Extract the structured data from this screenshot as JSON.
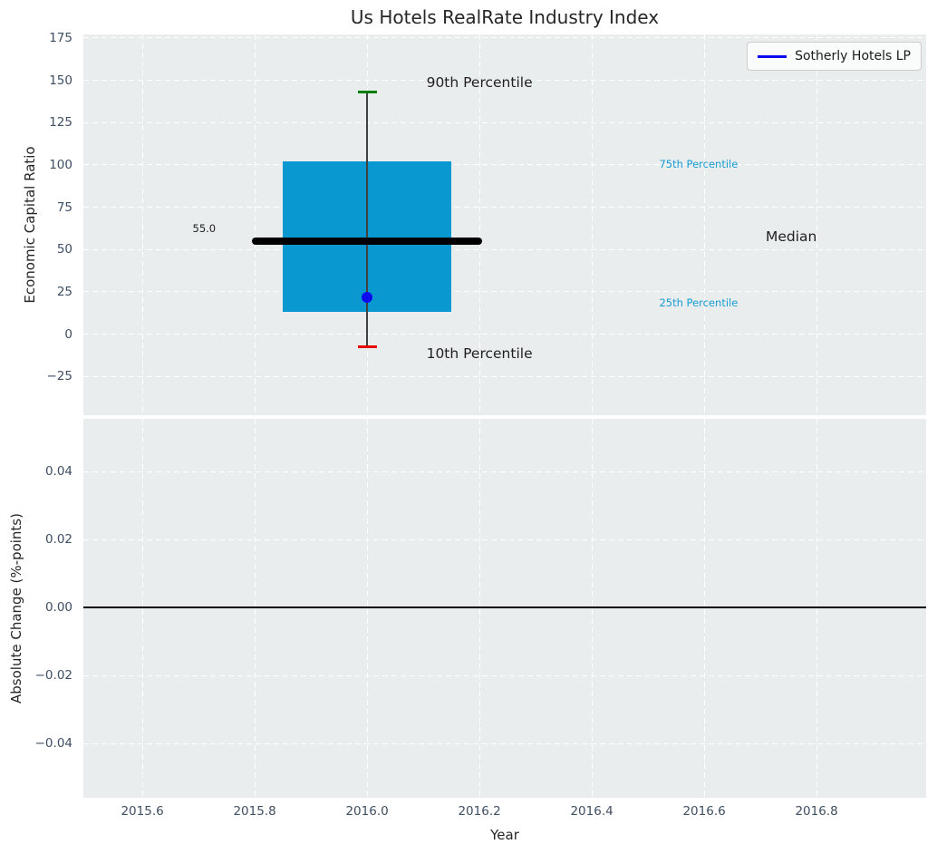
{
  "title": "Us Hotels RealRate Industry Index",
  "legend": {
    "label": "Sotherly Hotels LP"
  },
  "colors": {
    "plot_bg": "#e9edee",
    "grid": "#ffffff",
    "box_fill": "#0999d0",
    "percentile_label_color": "#189cd2",
    "median_line": "#000000",
    "whisker": "#404040",
    "p90_cap": "#008000",
    "p10_cap": "#e60000",
    "company_dot": "#0b0bee",
    "legend_line": "#0b0bee",
    "zero_line": "#000000",
    "tick_label": "#3e4e63",
    "text": "#262626"
  },
  "chart_data": [
    {
      "type": "box",
      "title": "Us Hotels RealRate Industry Index",
      "ylabel": "Economic Capital Ratio",
      "xlim": [
        2015.495,
        2016.995
      ],
      "ylim": [
        -47.9,
        177.1
      ],
      "xticks": [
        2015.6,
        2015.8,
        2016.0,
        2016.2,
        2016.4,
        2016.6,
        2016.8
      ],
      "yticks": [
        175,
        150,
        125,
        100,
        75,
        50,
        25,
        0,
        -25
      ],
      "ytick_labels": [
        "175",
        "150",
        "125",
        "100",
        "75",
        "50",
        "25",
        "0",
        "−25"
      ],
      "grid": true,
      "legend_position": "upper right",
      "box": {
        "x": 2016.0,
        "p90": 143,
        "p75": 102,
        "median": 55.0,
        "p25": 13,
        "p10": -7.5,
        "median_value_label": "55.0",
        "box_halfwidth": 0.15,
        "median_halfwidth": 0.205,
        "cap_halfwidth": 0.017
      },
      "company_point": {
        "name": "Sotherly Hotels LP",
        "x": 2016.0,
        "value": 22
      },
      "annotations": [
        {
          "text": "90th Percentile",
          "x": 2016.2,
          "y": 147.5,
          "size": 15.5,
          "color": "#1f1f1f"
        },
        {
          "text": "75th Percentile",
          "x": 2016.59,
          "y": 100,
          "size": 11.5,
          "color": "#189cd2"
        },
        {
          "text": "Median",
          "x": 2016.755,
          "y": 56.5,
          "size": 15.5,
          "color": "#1f1f1f"
        },
        {
          "text": "25th Percentile",
          "x": 2016.59,
          "y": 18,
          "size": 11.5,
          "color": "#189cd2"
        },
        {
          "text": "10th Percentile",
          "x": 2016.2,
          "y": -12.5,
          "size": 15.5,
          "color": "#1f1f1f"
        },
        {
          "text": "55.0",
          "x": 2015.71,
          "y": 62,
          "size": 11.5,
          "color": "#1f1f1f"
        }
      ]
    },
    {
      "type": "line",
      "ylabel": "Absolute Change (%-points)",
      "xlabel": "Year",
      "xlim": [
        2015.495,
        2016.995
      ],
      "ylim": [
        -0.056,
        0.0555
      ],
      "xticks": [
        2015.6,
        2015.8,
        2016.0,
        2016.2,
        2016.4,
        2016.6,
        2016.8
      ],
      "xtick_labels": [
        "2015.6",
        "2015.8",
        "2016.0",
        "2016.2",
        "2016.4",
        "2016.6",
        "2016.8"
      ],
      "yticks": [
        0.04,
        0.02,
        0.0,
        -0.02,
        -0.04
      ],
      "ytick_labels": [
        "0.04",
        "0.02",
        "0.00",
        "−0.02",
        "−0.04"
      ],
      "grid": true,
      "zero_line_y": 0.0
    }
  ]
}
